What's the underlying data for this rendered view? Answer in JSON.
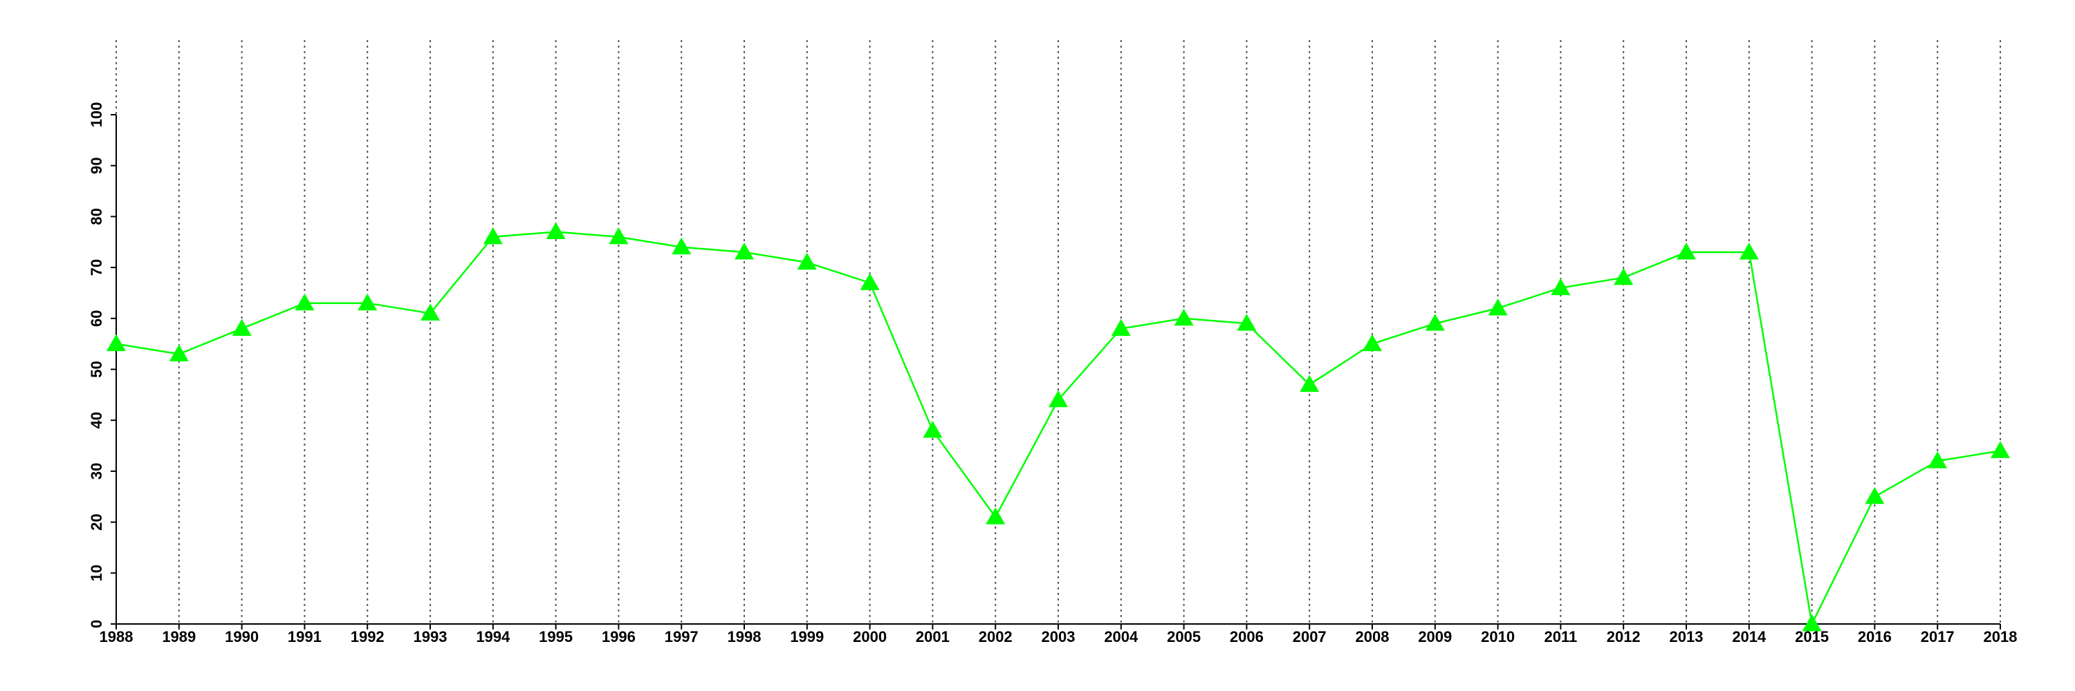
{
  "chart_data": {
    "type": "line",
    "x": [
      1988,
      1989,
      1990,
      1991,
      1992,
      1993,
      1994,
      1995,
      1996,
      1997,
      1998,
      1999,
      2000,
      2001,
      2002,
      2003,
      2004,
      2005,
      2006,
      2007,
      2008,
      2009,
      2010,
      2011,
      2012,
      2013,
      2014,
      2015,
      2016,
      2017,
      2018
    ],
    "series": [
      {
        "color": "#00ff00",
        "values": [
          55,
          53,
          58,
          63,
          63,
          61,
          76,
          77,
          76,
          74,
          73,
          71,
          67,
          38,
          21,
          44,
          58,
          60,
          59,
          47,
          55,
          59,
          62,
          66,
          68,
          73,
          73,
          0,
          25,
          32,
          34
        ]
      }
    ],
    "xlim": [
      1988,
      2018
    ],
    "xticks": [
      1988,
      1989,
      1990,
      1991,
      1992,
      1993,
      1994,
      1995,
      1996,
      1997,
      1998,
      1999,
      2000,
      2001,
      2002,
      2003,
      2004,
      2005,
      2006,
      2007,
      2008,
      2009,
      2010,
      2011,
      2012,
      2013,
      2014,
      2015,
      2016,
      2017,
      2018
    ],
    "ylim": [
      0,
      100
    ],
    "yticks": [
      0,
      10,
      20,
      30,
      40,
      50,
      60,
      70,
      80,
      90,
      100
    ],
    "grid": true
  }
}
